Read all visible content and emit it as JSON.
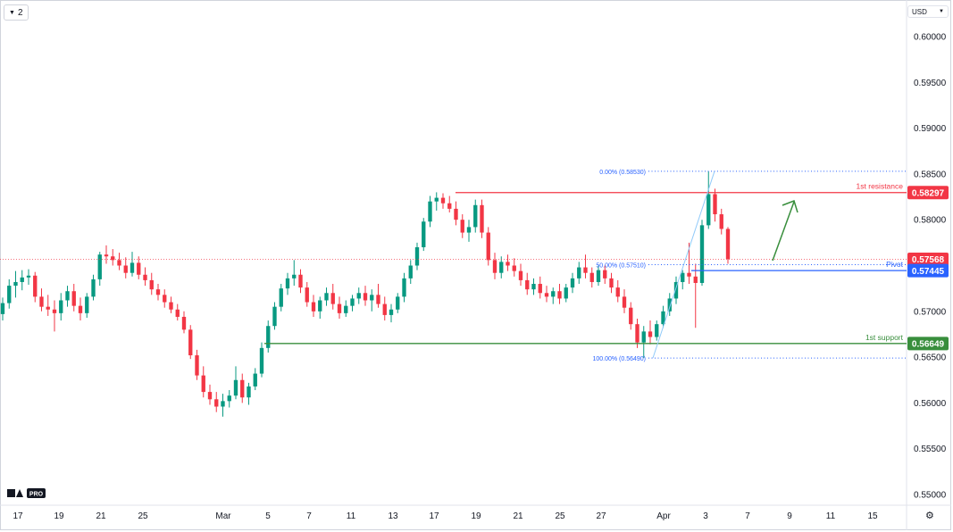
{
  "toolbar": {
    "interval_label": "2",
    "currency_label": "USD"
  },
  "chart_data": {
    "type": "candlestick",
    "price_axis": {
      "min": 0.548,
      "max": 0.603,
      "ticks": [
        "0.60000",
        "0.59500",
        "0.59000",
        "0.58500",
        "0.58000",
        "0.57500",
        "0.57000",
        "0.56500",
        "0.56000",
        "0.55500",
        "0.55000"
      ]
    },
    "time_axis": {
      "labels": [
        "17",
        "19",
        "21",
        "25",
        "Mar",
        "5",
        "7",
        "11",
        "13",
        "17",
        "19",
        "21",
        "25",
        "27",
        "Apr",
        "3",
        "7",
        "9",
        "11",
        "15"
      ]
    },
    "price_labels": [
      {
        "name": "resistance",
        "text": "0.58297",
        "price": 0.58297,
        "color": "#f23645"
      },
      {
        "name": "current",
        "text": "0.57568",
        "price": 0.57568,
        "color": "#f23645"
      },
      {
        "name": "pivot",
        "text": "0.57445",
        "price": 0.57445,
        "color": "#2962ff"
      },
      {
        "name": "support",
        "text": "0.56649",
        "price": 0.56649,
        "color": "#388e3c"
      }
    ],
    "levels": [
      {
        "name": "1st resistance",
        "label": "1st resistance",
        "price": 0.58297,
        "color": "#f23645"
      },
      {
        "name": "Pivot",
        "label": "Pivot",
        "price": 0.57445,
        "color": "#2962ff"
      },
      {
        "name": "1st support",
        "label": "1st support",
        "price": 0.56649,
        "color": "#388e3c"
      }
    ],
    "fibonacci": [
      {
        "label": "0.00% (0.58530)",
        "price": 0.5853
      },
      {
        "label": "50.00% (0.57510)",
        "price": 0.5751
      },
      {
        "label": "100.00% (0.56490)",
        "price": 0.5649
      }
    ],
    "candles": [
      [
        0.5697,
        0.5715,
        0.569,
        0.5709
      ],
      [
        0.5709,
        0.5735,
        0.5703,
        0.5728
      ],
      [
        0.5728,
        0.5744,
        0.5715,
        0.5732
      ],
      [
        0.5732,
        0.5745,
        0.5723,
        0.5737
      ],
      [
        0.5737,
        0.5746,
        0.5729,
        0.5739
      ],
      [
        0.5739,
        0.5743,
        0.571,
        0.5716
      ],
      [
        0.5716,
        0.5725,
        0.57,
        0.5705
      ],
      [
        0.5705,
        0.5718,
        0.5695,
        0.5702
      ],
      [
        0.5702,
        0.5712,
        0.5678,
        0.5698
      ],
      [
        0.5698,
        0.572,
        0.569,
        0.5712
      ],
      [
        0.5712,
        0.5728,
        0.5705,
        0.5722
      ],
      [
        0.5722,
        0.573,
        0.57,
        0.5706
      ],
      [
        0.5706,
        0.5715,
        0.569,
        0.5698
      ],
      [
        0.5698,
        0.572,
        0.5693,
        0.5716
      ],
      [
        0.5716,
        0.574,
        0.5712,
        0.5735
      ],
      [
        0.5735,
        0.5765,
        0.5728,
        0.5762
      ],
      [
        0.5762,
        0.5772,
        0.5752,
        0.576
      ],
      [
        0.576,
        0.5768,
        0.575,
        0.5756
      ],
      [
        0.5756,
        0.5764,
        0.5745,
        0.575
      ],
      [
        0.575,
        0.5759,
        0.5736,
        0.5742
      ],
      [
        0.5742,
        0.5765,
        0.5738,
        0.5753
      ],
      [
        0.5753,
        0.576,
        0.5735,
        0.574
      ],
      [
        0.574,
        0.5748,
        0.5728,
        0.5734
      ],
      [
        0.5734,
        0.5742,
        0.5718,
        0.5724
      ],
      [
        0.5724,
        0.573,
        0.5712,
        0.5718
      ],
      [
        0.5718,
        0.5724,
        0.5704,
        0.571
      ],
      [
        0.571,
        0.5716,
        0.5698,
        0.5702
      ],
      [
        0.5702,
        0.5708,
        0.569,
        0.5694
      ],
      [
        0.5694,
        0.57,
        0.5676,
        0.568
      ],
      [
        0.568,
        0.5685,
        0.5648,
        0.5652
      ],
      [
        0.5652,
        0.5658,
        0.5625,
        0.563
      ],
      [
        0.563,
        0.564,
        0.5606,
        0.5612
      ],
      [
        0.5612,
        0.562,
        0.5598,
        0.5604
      ],
      [
        0.5604,
        0.5612,
        0.559,
        0.5596
      ],
      [
        0.5596,
        0.561,
        0.5585,
        0.5602
      ],
      [
        0.5602,
        0.5614,
        0.5595,
        0.5608
      ],
      [
        0.5608,
        0.564,
        0.5604,
        0.5625
      ],
      [
        0.5625,
        0.5632,
        0.56,
        0.5606
      ],
      [
        0.5606,
        0.5622,
        0.5598,
        0.5618
      ],
      [
        0.5618,
        0.5638,
        0.5614,
        0.5632
      ],
      [
        0.5632,
        0.5666,
        0.5628,
        0.566
      ],
      [
        0.566,
        0.569,
        0.5655,
        0.5684
      ],
      [
        0.5684,
        0.571,
        0.568,
        0.5705
      ],
      [
        0.5705,
        0.573,
        0.57,
        0.5725
      ],
      [
        0.5725,
        0.5742,
        0.5718,
        0.5736
      ],
      [
        0.5736,
        0.5756,
        0.5728,
        0.574
      ],
      [
        0.574,
        0.5746,
        0.572,
        0.5726
      ],
      [
        0.5726,
        0.5732,
        0.5705,
        0.571
      ],
      [
        0.571,
        0.5718,
        0.5694,
        0.57
      ],
      [
        0.57,
        0.5716,
        0.5692,
        0.5712
      ],
      [
        0.5712,
        0.5726,
        0.5706,
        0.572
      ],
      [
        0.572,
        0.573,
        0.5702,
        0.5708
      ],
      [
        0.5708,
        0.5716,
        0.5692,
        0.5698
      ],
      [
        0.5698,
        0.5712,
        0.5694,
        0.5706
      ],
      [
        0.5706,
        0.5718,
        0.57,
        0.5714
      ],
      [
        0.5714,
        0.5726,
        0.5708,
        0.572
      ],
      [
        0.572,
        0.5728,
        0.5706,
        0.5712
      ],
      [
        0.5712,
        0.5724,
        0.57,
        0.5718
      ],
      [
        0.5718,
        0.573,
        0.5704,
        0.5708
      ],
      [
        0.5708,
        0.5716,
        0.569,
        0.5696
      ],
      [
        0.5696,
        0.5708,
        0.5688,
        0.5702
      ],
      [
        0.5702,
        0.572,
        0.5698,
        0.5716
      ],
      [
        0.5716,
        0.5742,
        0.571,
        0.5736
      ],
      [
        0.5736,
        0.5756,
        0.573,
        0.575
      ],
      [
        0.575,
        0.5775,
        0.5745,
        0.577
      ],
      [
        0.577,
        0.5802,
        0.5766,
        0.5798
      ],
      [
        0.5798,
        0.5826,
        0.5792,
        0.582
      ],
      [
        0.582,
        0.583,
        0.581,
        0.5824
      ],
      [
        0.5824,
        0.5829,
        0.5812,
        0.5818
      ],
      [
        0.5818,
        0.5826,
        0.5808,
        0.5812
      ],
      [
        0.5812,
        0.582,
        0.5794,
        0.58
      ],
      [
        0.58,
        0.5806,
        0.578,
        0.5786
      ],
      [
        0.5786,
        0.58,
        0.5776,
        0.5792
      ],
      [
        0.5792,
        0.5822,
        0.5786,
        0.5816
      ],
      [
        0.5816,
        0.5822,
        0.578,
        0.5786
      ],
      [
        0.5786,
        0.5792,
        0.575,
        0.5756
      ],
      [
        0.5756,
        0.5764,
        0.5735,
        0.5742
      ],
      [
        0.5742,
        0.576,
        0.5736,
        0.5754
      ],
      [
        0.5754,
        0.5762,
        0.5744,
        0.575
      ],
      [
        0.575,
        0.5758,
        0.5738,
        0.5744
      ],
      [
        0.5744,
        0.5752,
        0.5728,
        0.5734
      ],
      [
        0.5734,
        0.5742,
        0.5718,
        0.5724
      ],
      [
        0.5724,
        0.5736,
        0.5718,
        0.573
      ],
      [
        0.573,
        0.5738,
        0.5714,
        0.572
      ],
      [
        0.572,
        0.5728,
        0.571,
        0.5716
      ],
      [
        0.5716,
        0.5726,
        0.5708,
        0.5722
      ],
      [
        0.5722,
        0.573,
        0.5708,
        0.5714
      ],
      [
        0.5714,
        0.573,
        0.571,
        0.5726
      ],
      [
        0.5726,
        0.5742,
        0.572,
        0.5736
      ],
      [
        0.5736,
        0.5754,
        0.573,
        0.5748
      ],
      [
        0.5748,
        0.5762,
        0.5736,
        0.5742
      ],
      [
        0.5742,
        0.5748,
        0.5726,
        0.5732
      ],
      [
        0.5732,
        0.575,
        0.5728,
        0.5745
      ],
      [
        0.5745,
        0.575,
        0.573,
        0.5736
      ],
      [
        0.5736,
        0.5742,
        0.572,
        0.5726
      ],
      [
        0.5726,
        0.5734,
        0.571,
        0.5716
      ],
      [
        0.5716,
        0.5724,
        0.5698,
        0.5704
      ],
      [
        0.5704,
        0.571,
        0.568,
        0.5686
      ],
      [
        0.5686,
        0.5692,
        0.566,
        0.5666
      ],
      [
        0.5666,
        0.5684,
        0.5649,
        0.5678
      ],
      [
        0.5678,
        0.569,
        0.5664,
        0.5672
      ],
      [
        0.5672,
        0.569,
        0.5668,
        0.5686
      ],
      [
        0.5686,
        0.5706,
        0.5682,
        0.57
      ],
      [
        0.57,
        0.572,
        0.5695,
        0.5714
      ],
      [
        0.5714,
        0.5738,
        0.5708,
        0.5732
      ],
      [
        0.5732,
        0.5745,
        0.5724,
        0.5742
      ],
      [
        0.5742,
        0.5775,
        0.573,
        0.5738
      ],
      [
        0.5738,
        0.5752,
        0.5682,
        0.5731
      ],
      [
        0.5731,
        0.58,
        0.5728,
        0.5794
      ],
      [
        0.5794,
        0.5853,
        0.579,
        0.5828
      ],
      [
        0.5828,
        0.5834,
        0.5798,
        0.5806
      ],
      [
        0.5806,
        0.5812,
        0.5784,
        0.579
      ],
      [
        0.579,
        0.5792,
        0.5752,
        0.5757
      ]
    ]
  }
}
